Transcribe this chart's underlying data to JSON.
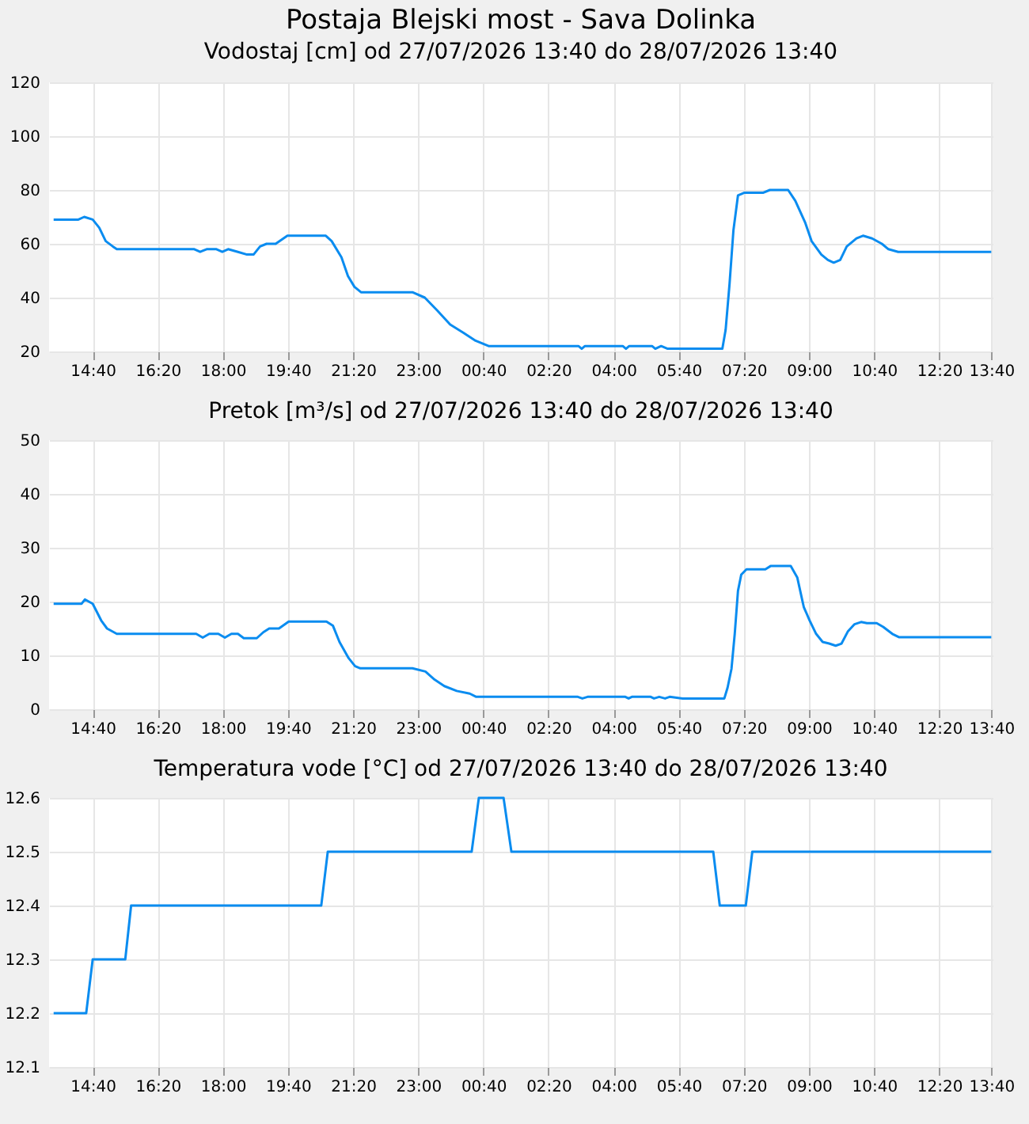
{
  "chart_data": [
    {
      "type": "line",
      "title": "Postaja Blejski most - Sava Dolinka",
      "subtitle": "Vodostaj [cm] od 27/07/2026 13:40 do 28/07/2026 13:40",
      "series": [
        {
          "color": "#0a8cf0",
          "x": [
            "2026-07-27T13:40",
            "2026-07-27T14:18",
            "2026-07-27T14:27",
            "2026-07-27T14:40",
            "2026-07-27T14:50",
            "2026-07-27T15:00",
            "2026-07-27T15:11",
            "2026-07-27T15:17",
            "2026-07-27T17:16",
            "2026-07-27T17:25",
            "2026-07-27T17:35",
            "2026-07-27T17:50",
            "2026-07-27T17:59",
            "2026-07-27T18:08",
            "2026-07-27T18:23",
            "2026-07-27T18:37",
            "2026-07-27T18:47",
            "2026-07-27T18:57",
            "2026-07-27T19:07",
            "2026-07-27T19:21",
            "2026-07-27T19:39",
            "2026-07-27T20:38",
            "2026-07-27T20:47",
            "2026-07-27T21:02",
            "2026-07-27T21:12",
            "2026-07-27T21:22",
            "2026-07-27T21:32",
            "2026-07-27T22:51",
            "2026-07-27T23:10",
            "2026-07-27T23:30",
            "2026-07-27T23:49",
            "2026-07-28T00:09",
            "2026-07-28T00:28",
            "2026-07-28T00:48",
            "2026-07-28T03:06",
            "2026-07-28T03:11",
            "2026-07-28T03:16",
            "2026-07-28T04:14",
            "2026-07-28T04:19",
            "2026-07-28T04:24",
            "2026-07-28T04:59",
            "2026-07-28T05:04",
            "2026-07-28T05:13",
            "2026-07-28T05:23",
            "2026-07-28T05:42",
            "2026-07-28T06:47",
            "2026-07-28T06:52",
            "2026-07-28T06:58",
            "2026-07-28T07:04",
            "2026-07-28T07:11",
            "2026-07-28T07:21",
            "2026-07-28T07:50",
            "2026-07-28T08:00",
            "2026-07-28T08:28",
            "2026-07-28T08:39",
            "2026-07-28T08:54",
            "2026-07-28T09:04",
            "2026-07-28T09:19",
            "2026-07-28T09:29",
            "2026-07-28T09:38",
            "2026-07-28T09:48",
            "2026-07-28T09:58",
            "2026-07-28T10:13",
            "2026-07-28T10:23",
            "2026-07-28T10:37",
            "2026-07-28T10:52",
            "2026-07-28T11:02",
            "2026-07-28T11:17",
            "2026-07-28T13:40"
          ],
          "values": [
            69,
            69,
            70,
            69,
            66,
            61,
            59,
            58,
            58,
            57,
            58,
            58,
            57,
            58,
            57,
            56,
            56,
            59,
            60,
            60,
            63,
            63,
            61,
            55,
            48,
            44,
            42,
            42,
            40,
            35,
            30,
            27,
            24,
            22,
            22,
            21,
            22,
            22,
            21,
            22,
            22,
            21,
            22,
            21,
            21,
            21,
            28,
            45,
            65,
            78,
            79,
            79,
            80,
            80,
            76,
            68,
            61,
            56,
            54,
            53,
            54,
            59,
            62,
            63,
            62,
            60,
            58,
            57,
            57
          ]
        }
      ],
      "xlim": [
        "2026-07-27T13:33",
        "2026-07-28T13:42"
      ],
      "xticks": [
        {
          "value": "2026-07-27T14:40",
          "label": "14:40"
        },
        {
          "value": "2026-07-27T16:20",
          "label": "16:20"
        },
        {
          "value": "2026-07-27T18:00",
          "label": "18:00"
        },
        {
          "value": "2026-07-27T19:40",
          "label": "19:40"
        },
        {
          "value": "2026-07-27T21:20",
          "label": "21:20"
        },
        {
          "value": "2026-07-27T23:00",
          "label": "23:00"
        },
        {
          "value": "2026-07-28T00:40",
          "label": "00:40"
        },
        {
          "value": "2026-07-28T02:20",
          "label": "02:20"
        },
        {
          "value": "2026-07-28T04:00",
          "label": "04:00"
        },
        {
          "value": "2026-07-28T05:40",
          "label": "05:40"
        },
        {
          "value": "2026-07-28T07:20",
          "label": "07:20"
        },
        {
          "value": "2026-07-28T09:00",
          "label": "09:00"
        },
        {
          "value": "2026-07-28T10:40",
          "label": "10:40"
        },
        {
          "value": "2026-07-28T12:20",
          "label": "12:20"
        },
        {
          "value": "2026-07-28T13:40",
          "label": "13:40"
        }
      ],
      "ylim": [
        20,
        120
      ],
      "yticks": [
        20,
        40,
        60,
        80,
        100,
        120
      ],
      "grid": true,
      "line_style": "solid"
    },
    {
      "type": "line",
      "title": "Pretok [m³/s] od 27/07/2026 13:40 do 28/07/2026 13:40",
      "series": [
        {
          "color": "#0a8cf0",
          "x": [
            "2026-07-27T13:40",
            "2026-07-27T14:23",
            "2026-07-27T14:28",
            "2026-07-27T14:40",
            "2026-07-27T14:53",
            "2026-07-27T15:02",
            "2026-07-27T15:17",
            "2026-07-27T17:19",
            "2026-07-27T17:29",
            "2026-07-27T17:39",
            "2026-07-27T17:53",
            "2026-07-27T18:03",
            "2026-07-27T18:13",
            "2026-07-27T18:23",
            "2026-07-27T18:32",
            "2026-07-27T18:52",
            "2026-07-27T19:02",
            "2026-07-27T19:11",
            "2026-07-27T19:26",
            "2026-07-27T19:41",
            "2026-07-27T20:39",
            "2026-07-27T20:49",
            "2026-07-27T20:59",
            "2026-07-27T21:13",
            "2026-07-27T21:23",
            "2026-07-27T21:31",
            "2026-07-27T22:51",
            "2026-07-27T23:11",
            "2026-07-27T23:25",
            "2026-07-27T23:40",
            "2026-07-27T23:59",
            "2026-07-28T00:19",
            "2026-07-28T00:29",
            "2026-07-28T03:05",
            "2026-07-28T03:12",
            "2026-07-28T03:20",
            "2026-07-28T04:18",
            "2026-07-28T04:23",
            "2026-07-28T04:28",
            "2026-07-28T04:57",
            "2026-07-28T05:02",
            "2026-07-28T05:10",
            "2026-07-28T05:19",
            "2026-07-28T05:26",
            "2026-07-28T05:46",
            "2026-07-28T06:50",
            "2026-07-28T06:55",
            "2026-07-28T07:01",
            "2026-07-28T07:06",
            "2026-07-28T07:11",
            "2026-07-28T07:16",
            "2026-07-28T07:24",
            "2026-07-28T07:53",
            "2026-07-28T08:01",
            "2026-07-28T08:32",
            "2026-07-28T08:42",
            "2026-07-28T08:52",
            "2026-07-28T09:01",
            "2026-07-28T09:11",
            "2026-07-28T09:21",
            "2026-07-28T09:31",
            "2026-07-28T09:41",
            "2026-07-28T09:50",
            "2026-07-28T10:00",
            "2026-07-28T10:10",
            "2026-07-28T10:20",
            "2026-07-28T10:29",
            "2026-07-28T10:44",
            "2026-07-28T10:54",
            "2026-07-28T11:08",
            "2026-07-28T11:18",
            "2026-07-28T13:40"
          ],
          "values": [
            19.6,
            19.6,
            20.4,
            19.6,
            16.5,
            15,
            14,
            14,
            13.3,
            14,
            14,
            13.3,
            14,
            14,
            13.2,
            13.2,
            14.3,
            15,
            15,
            16.3,
            16.3,
            15.5,
            12.5,
            9.5,
            8,
            7.6,
            7.6,
            7,
            5.5,
            4.3,
            3.4,
            2.9,
            2.3,
            2.3,
            2,
            2.3,
            2.3,
            2,
            2.3,
            2.3,
            2,
            2.3,
            2,
            2.3,
            2,
            2,
            4,
            7.5,
            14,
            22,
            25,
            26,
            26,
            26.6,
            26.6,
            24.5,
            19,
            16.5,
            14,
            12.5,
            12.2,
            11.8,
            12.2,
            14.5,
            15.8,
            16.2,
            16,
            16,
            15.3,
            14,
            13.4,
            13.4
          ]
        }
      ],
      "xlim": [
        "2026-07-27T13:33",
        "2026-07-28T13:42"
      ],
      "xticks": [
        {
          "value": "2026-07-27T14:40",
          "label": "14:40"
        },
        {
          "value": "2026-07-27T16:20",
          "label": "16:20"
        },
        {
          "value": "2026-07-27T18:00",
          "label": "18:00"
        },
        {
          "value": "2026-07-27T19:40",
          "label": "19:40"
        },
        {
          "value": "2026-07-27T21:20",
          "label": "21:20"
        },
        {
          "value": "2026-07-27T23:00",
          "label": "23:00"
        },
        {
          "value": "2026-07-28T00:40",
          "label": "00:40"
        },
        {
          "value": "2026-07-28T02:20",
          "label": "02:20"
        },
        {
          "value": "2026-07-28T04:00",
          "label": "04:00"
        },
        {
          "value": "2026-07-28T05:40",
          "label": "05:40"
        },
        {
          "value": "2026-07-28T07:20",
          "label": "07:20"
        },
        {
          "value": "2026-07-28T09:00",
          "label": "09:00"
        },
        {
          "value": "2026-07-28T10:40",
          "label": "10:40"
        },
        {
          "value": "2026-07-28T12:20",
          "label": "12:20"
        },
        {
          "value": "2026-07-28T13:40",
          "label": "13:40"
        }
      ],
      "ylim": [
        0,
        50
      ],
      "yticks": [
        0,
        10,
        20,
        30,
        40,
        50
      ],
      "grid": true,
      "line_style": "solid"
    },
    {
      "type": "line",
      "title": "Temperatura vode [°C] od 27/07/2026 13:40 do 28/07/2026 13:40",
      "series": [
        {
          "color": "#0a8cf0",
          "x": [
            "2026-07-27T13:40",
            "2026-07-27T14:30",
            "2026-07-27T14:40",
            "2026-07-27T15:30",
            "2026-07-27T15:39",
            "2026-07-27T20:31",
            "2026-07-27T20:41",
            "2026-07-28T00:22",
            "2026-07-28T00:33",
            "2026-07-28T01:11",
            "2026-07-28T01:23",
            "2026-07-28T06:33",
            "2026-07-28T06:43",
            "2026-07-28T07:23",
            "2026-07-28T07:33",
            "2026-07-28T13:40"
          ],
          "values": [
            12.2,
            12.2,
            12.3,
            12.3,
            12.4,
            12.4,
            12.5,
            12.5,
            12.6,
            12.6,
            12.5,
            12.5,
            12.4,
            12.4,
            12.5,
            12.5
          ]
        }
      ],
      "xlim": [
        "2026-07-27T13:33",
        "2026-07-28T13:42"
      ],
      "xticks": [
        {
          "value": "2026-07-27T14:40",
          "label": "14:40"
        },
        {
          "value": "2026-07-27T16:20",
          "label": "16:20"
        },
        {
          "value": "2026-07-27T18:00",
          "label": "18:00"
        },
        {
          "value": "2026-07-27T19:40",
          "label": "19:40"
        },
        {
          "value": "2026-07-27T21:20",
          "label": "21:20"
        },
        {
          "value": "2026-07-27T23:00",
          "label": "23:00"
        },
        {
          "value": "2026-07-28T00:40",
          "label": "00:40"
        },
        {
          "value": "2026-07-28T02:20",
          "label": "02:20"
        },
        {
          "value": "2026-07-28T04:00",
          "label": "04:00"
        },
        {
          "value": "2026-07-28T05:40",
          "label": "05:40"
        },
        {
          "value": "2026-07-28T07:20",
          "label": "07:20"
        },
        {
          "value": "2026-07-28T09:00",
          "label": "09:00"
        },
        {
          "value": "2026-07-28T10:40",
          "label": "10:40"
        },
        {
          "value": "2026-07-28T12:20",
          "label": "12:20"
        },
        {
          "value": "2026-07-28T13:40",
          "label": "13:40"
        }
      ],
      "ylim": [
        12.1,
        12.6
      ],
      "yticks": [
        12.1,
        12.2,
        12.3,
        12.4,
        12.5,
        12.6
      ],
      "grid": true,
      "line_style": "solid"
    }
  ]
}
